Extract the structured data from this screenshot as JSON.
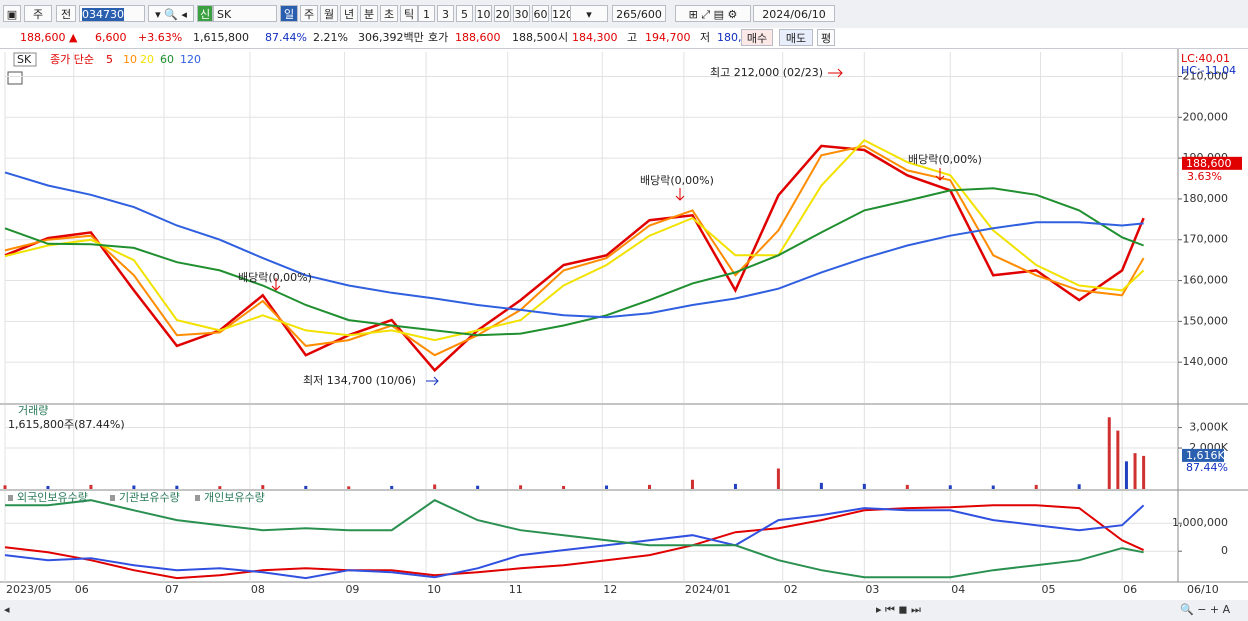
{
  "toolbar": {
    "period_type": "주",
    "prev": "전",
    "code": "034730",
    "market": "신",
    "name": "SK",
    "intervals": [
      "일",
      "주",
      "월",
      "년",
      "분",
      "초",
      "틱"
    ],
    "multipliers": [
      "1",
      "3",
      "5",
      "10",
      "20",
      "30",
      "60",
      "120"
    ],
    "bar_count": "265",
    "bar_max": "/600",
    "date": "2024/06/10"
  },
  "info_bar": {
    "price": "188,600 ▲",
    "change": "6,600",
    "change_pct": "+3.63%",
    "volume": "1,615,800",
    "volume_ratio": "87.44%",
    "turnover": "2.21%",
    "amount": "306,392백만",
    "quote_label": "호가",
    "ask": "188,600",
    "bid": "188,500",
    "open_label": "시",
    "open": "184,300",
    "high_label": "고",
    "high": "194,700",
    "low_label": "저",
    "low": "180,200",
    "buy": "매수",
    "sell": "매도",
    "avg": "평"
  },
  "chart_data": [
    {
      "type": "line",
      "legend_symbol": "SK",
      "legend_title": "종가 단순",
      "lc_label": "LC:40,01",
      "hc_label": "HC:-11,04",
      "x": [
        0,
        10,
        20,
        30,
        40,
        50,
        60,
        70,
        80,
        90,
        100,
        110,
        120,
        130,
        140,
        150,
        160,
        170,
        180,
        190,
        200,
        210,
        220,
        230,
        240,
        250,
        260,
        265
      ],
      "xlim": [
        0,
        273
      ],
      "xticks": [
        {
          "value": 0,
          "label": "2023/05"
        },
        {
          "value": 16,
          "label": "06"
        },
        {
          "value": 37,
          "label": "07"
        },
        {
          "value": 57,
          "label": "08"
        },
        {
          "value": 79,
          "label": "09"
        },
        {
          "value": 98,
          "label": "10"
        },
        {
          "value": 117,
          "label": "11"
        },
        {
          "value": 139,
          "label": "12"
        },
        {
          "value": 158,
          "label": "2024/01"
        },
        {
          "value": 181,
          "label": "02"
        },
        {
          "value": 200,
          "label": "03"
        },
        {
          "value": 220,
          "label": "04"
        },
        {
          "value": 241,
          "label": "05"
        },
        {
          "value": 260,
          "label": "06"
        }
      ],
      "last_date": "06/10",
      "ylim": [
        130000,
        216000
      ],
      "yticks": [
        {
          "value": 140000,
          "label": "140,000"
        },
        {
          "value": 150000,
          "label": "150,000"
        },
        {
          "value": 160000,
          "label": "160,000"
        },
        {
          "value": 170000,
          "label": "170,000"
        },
        {
          "value": 180000,
          "label": "180,000"
        },
        {
          "value": 190000,
          "label": "190,000"
        },
        {
          "value": 200000,
          "label": "200,000"
        },
        {
          "value": 210000,
          "label": "210,000"
        }
      ],
      "grid": true,
      "last_price": {
        "value": 188600,
        "label": "188,600"
      },
      "last_change": "3.63%",
      "annotations": [
        "최고 212,000 (02/23)",
        "최저 134,700 (10/06)",
        "배당락(0,00%)",
        "배당락(0,00%)",
        "배당락(0,00%)"
      ],
      "series": [
        {
          "name": "5",
          "color": "#e00000",
          "values": [
            166200,
            170400,
            171800,
            157600,
            144000,
            147800,
            156400,
            141700,
            146600,
            150300,
            138000,
            147800,
            155200,
            163800,
            166200,
            174800,
            176000,
            157600,
            180900,
            193000,
            192000,
            185800,
            182100,
            161300,
            162500,
            155200,
            162500,
            175300
          ]
        },
        {
          "name": "10",
          "color": "#ff8c00",
          "values": [
            167400,
            170000,
            171000,
            161300,
            146600,
            147300,
            155000,
            144000,
            145400,
            149000,
            141700,
            146600,
            152800,
            162500,
            165500,
            173500,
            177200,
            161300,
            172300,
            190700,
            193000,
            187000,
            184600,
            166200,
            161300,
            157600,
            156400,
            165500
          ]
        },
        {
          "name": "20",
          "color": "#f2e200",
          "values": [
            166000,
            168600,
            170000,
            165000,
            150300,
            147800,
            151500,
            147800,
            146600,
            147800,
            145400,
            147800,
            150300,
            158800,
            163800,
            171000,
            175300,
            166200,
            166200,
            183300,
            194400,
            189000,
            185800,
            172300,
            163800,
            158800,
            157600,
            162500
          ]
        },
        {
          "name": "60",
          "color": "#1f8f2f",
          "values": [
            172800,
            169000,
            168900,
            168000,
            164500,
            162500,
            158800,
            154000,
            150300,
            149000,
            147800,
            146600,
            147000,
            149000,
            151500,
            155200,
            159300,
            162000,
            166200,
            171800,
            177200,
            179600,
            182100,
            182600,
            181000,
            177200,
            170600,
            168600
          ]
        },
        {
          "name": "120",
          "color": "#3060e0",
          "values": [
            186500,
            183300,
            181000,
            178000,
            173500,
            170000,
            165500,
            161300,
            158800,
            157000,
            155600,
            154000,
            152800,
            151500,
            151000,
            152000,
            154000,
            155600,
            158000,
            162000,
            165500,
            168600,
            171000,
            172800,
            174300,
            174300,
            173500,
            174000
          ]
        }
      ]
    },
    {
      "type": "bar",
      "title": "거래량",
      "subtitle": "1,615,800주(87.44%)",
      "x": [
        0,
        10,
        20,
        30,
        40,
        50,
        60,
        70,
        80,
        90,
        100,
        110,
        120,
        130,
        140,
        150,
        160,
        170,
        180,
        190,
        200,
        210,
        220,
        230,
        240,
        250,
        257,
        259,
        261,
        263,
        265
      ],
      "xlim": [
        0,
        273
      ],
      "values": [
        180000,
        150000,
        200000,
        170000,
        160000,
        140000,
        190000,
        150000,
        130000,
        150000,
        220000,
        160000,
        180000,
        150000,
        170000,
        200000,
        450000,
        250000,
        1000000,
        300000,
        250000,
        200000,
        180000,
        170000,
        200000,
        230000,
        3500000,
        2850000,
        1350000,
        1750000,
        1615800
      ],
      "colors": [
        "#d03030",
        "#2040c0",
        "#d03030",
        "#2040c0",
        "#2040c0",
        "#d03030",
        "#d03030",
        "#2040c0",
        "#d03030",
        "#2040c0",
        "#d03030",
        "#2040c0",
        "#d03030",
        "#d03030",
        "#2040c0",
        "#d03030",
        "#d03030",
        "#2040c0",
        "#d03030",
        "#2040c0",
        "#2040c0",
        "#d03030",
        "#2040c0",
        "#2040c0",
        "#d03030",
        "#2040c0",
        "#d03030",
        "#d03030",
        "#2040c0",
        "#d03030",
        "#d03030"
      ],
      "ylim": [
        0,
        4100000
      ],
      "yticks": [
        {
          "value": 2000000,
          "label": "2,000K"
        },
        {
          "value": 3000000,
          "label": "3,000K"
        }
      ],
      "last_value": {
        "value": 1615800,
        "label": "1,616K"
      },
      "last_ratio": "87.44%"
    },
    {
      "type": "line",
      "x": [
        0,
        10,
        20,
        30,
        40,
        50,
        60,
        70,
        80,
        90,
        100,
        110,
        120,
        130,
        140,
        150,
        160,
        170,
        180,
        190,
        200,
        210,
        220,
        230,
        240,
        250,
        260,
        265
      ],
      "xlim": [
        0,
        273
      ],
      "ylim": [
        -1100000,
        2150000
      ],
      "yticks": [
        0,
        {
          "value": 1000000,
          "label": "1,000,000"
        }
      ],
      "series": [
        {
          "name": "외국인보유수량",
          "color": "#e00000",
          "values": [
            140000,
            -40000,
            -320000,
            -680000,
            -960000,
            -860000,
            -680000,
            -610000,
            -680000,
            -680000,
            -860000,
            -750000,
            -610000,
            -500000,
            -320000,
            -140000,
            210000,
            680000,
            820000,
            1110000,
            1460000,
            1540000,
            1570000,
            1640000,
            1640000,
            1540000,
            390000,
            40000
          ]
        },
        {
          "name": "기관보유수량",
          "color": "#3050e0",
          "values": [
            -140000,
            -320000,
            -250000,
            -500000,
            -680000,
            -610000,
            -750000,
            -960000,
            -680000,
            -750000,
            -930000,
            -610000,
            -140000,
            40000,
            210000,
            390000,
            570000,
            210000,
            1110000,
            1290000,
            1540000,
            1460000,
            1460000,
            1110000,
            930000,
            750000,
            930000,
            1640000
          ]
        },
        {
          "name": "개인보유수량",
          "color": "#2a9050",
          "values": [
            1640000,
            1640000,
            1820000,
            1460000,
            1110000,
            930000,
            750000,
            820000,
            750000,
            750000,
            1820000,
            1110000,
            750000,
            570000,
            390000,
            210000,
            210000,
            210000,
            -320000,
            -680000,
            -930000,
            -930000,
            -930000,
            -680000,
            -500000,
            -320000,
            110000,
            -40000
          ]
        }
      ]
    }
  ]
}
